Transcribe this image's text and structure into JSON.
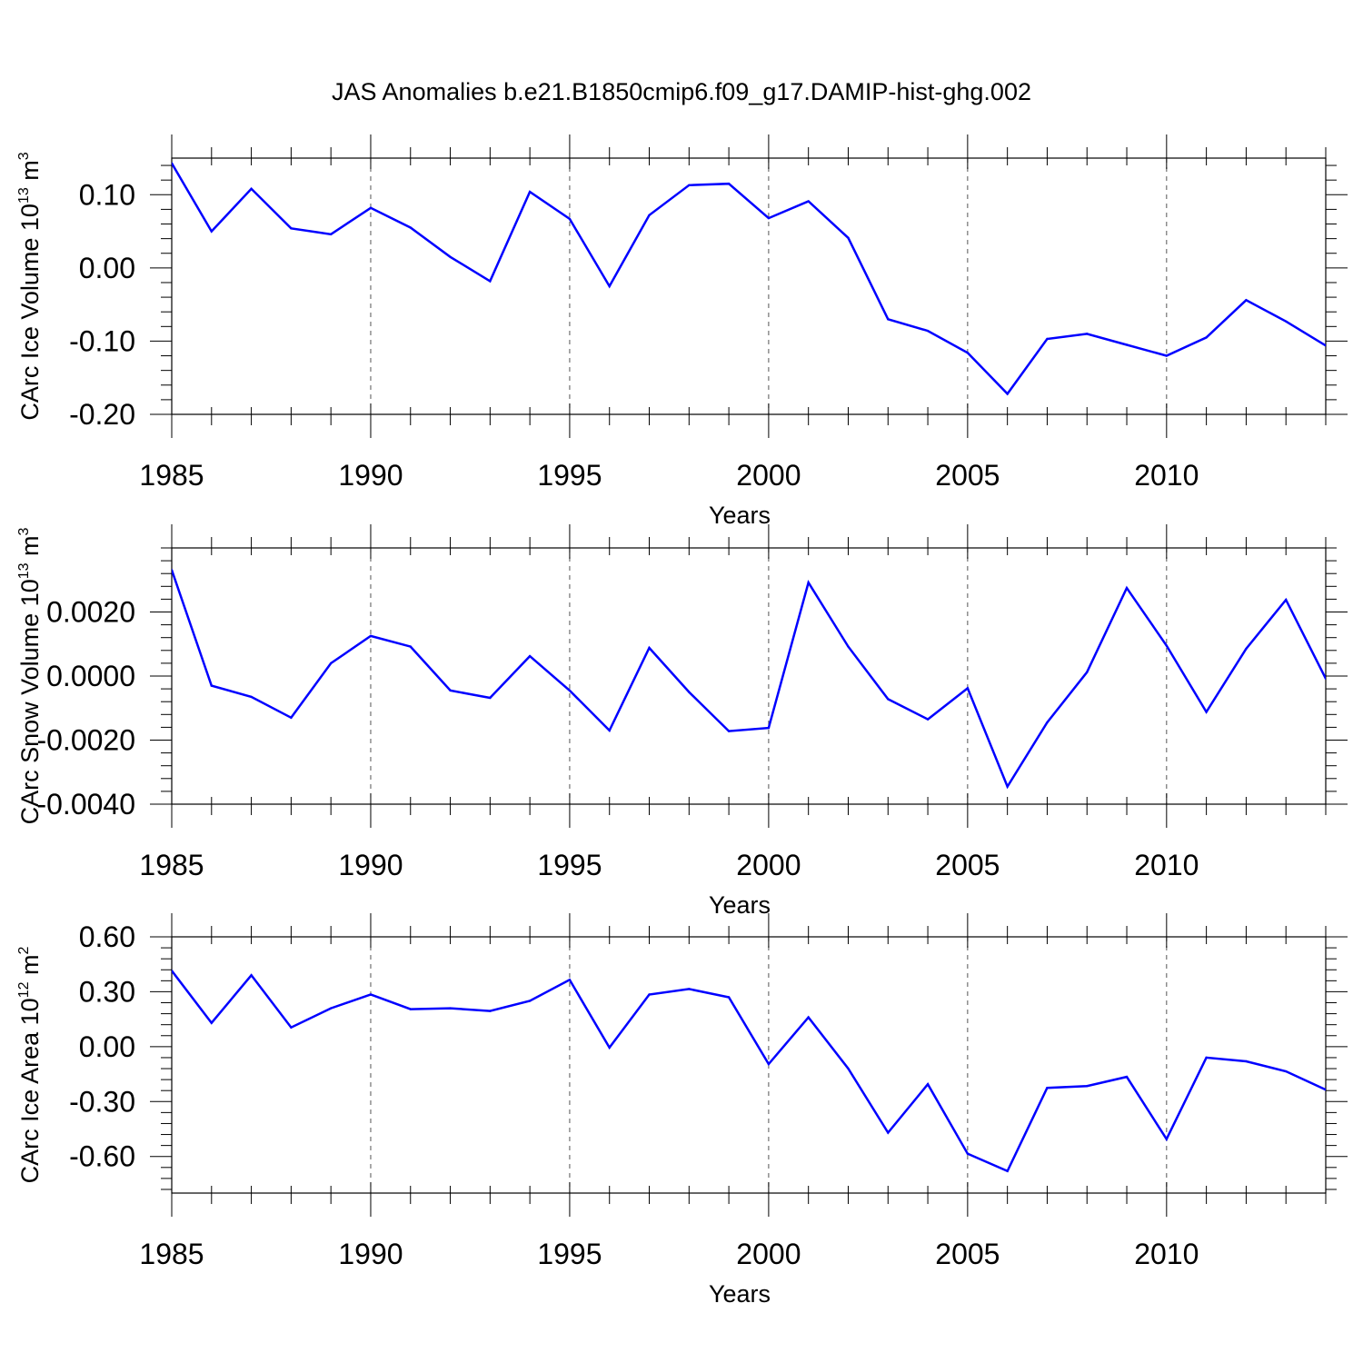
{
  "figure": {
    "title": "JAS Anomalies b.e21.B1850cmip6.f09_g17.DAMIP-hist-ghg.002"
  },
  "colors": {
    "series": "#0000ff",
    "axes": "#000000",
    "grid": "#555555"
  },
  "chart_data": [
    {
      "type": "line",
      "ylabel_main": "CArc Ice Volume 10",
      "ylabel_exp": "13",
      "ylabel_unit": " m",
      "ylabel_unit_exp": "3",
      "xlabel": "Years",
      "xlim": [
        1985,
        2014
      ],
      "ylim": [
        -0.2,
        0.15
      ],
      "x_ticks": [
        1985,
        1990,
        1995,
        2000,
        2005,
        2010
      ],
      "x_tick_labels": [
        "1985",
        "1990",
        "1995",
        "2000",
        "2005",
        "2010"
      ],
      "y_ticks": [
        0.1,
        0.0,
        -0.1,
        -0.2
      ],
      "y_tick_labels": [
        "0.10",
        "0.00",
        "-0.10",
        "-0.20"
      ],
      "x": [
        1985,
        1986,
        1987,
        1988,
        1989,
        1990,
        1991,
        1992,
        1993,
        1994,
        1995,
        1996,
        1997,
        1998,
        1999,
        2000,
        2001,
        2002,
        2003,
        2004,
        2005,
        2006,
        2007,
        2008,
        2009,
        2010,
        2011,
        2012,
        2013,
        2014
      ],
      "values": [
        0.143,
        0.05,
        0.108,
        0.054,
        0.046,
        0.082,
        0.055,
        0.015,
        -0.018,
        0.104,
        0.067,
        -0.025,
        0.072,
        0.113,
        0.115,
        0.068,
        0.091,
        0.041,
        -0.07,
        -0.086,
        -0.116,
        -0.172,
        -0.097,
        -0.09,
        -0.105,
        -0.12,
        -0.095,
        -0.044,
        -0.073,
        -0.106
      ]
    },
    {
      "type": "line",
      "ylabel_main": "CArc Snow Volume 10",
      "ylabel_exp": "13",
      "ylabel_unit": " m",
      "ylabel_unit_exp": "3",
      "xlabel": "Years",
      "xlim": [
        1985,
        2014
      ],
      "ylim": [
        -0.004,
        0.004
      ],
      "x_ticks": [
        1985,
        1990,
        1995,
        2000,
        2005,
        2010
      ],
      "x_tick_labels": [
        "1985",
        "1990",
        "1995",
        "2000",
        "2005",
        "2010"
      ],
      "y_ticks": [
        0.002,
        0.0,
        -0.002,
        -0.004
      ],
      "y_tick_labels": [
        "0.0020",
        "0.0000",
        "-0.0020",
        "-0.0040"
      ],
      "x": [
        1985,
        1986,
        1987,
        1988,
        1989,
        1990,
        1991,
        1992,
        1993,
        1994,
        1995,
        1996,
        1997,
        1998,
        1999,
        2000,
        2001,
        2002,
        2003,
        2004,
        2005,
        2006,
        2007,
        2008,
        2009,
        2010,
        2011,
        2012,
        2013,
        2014
      ],
      "values": [
        0.00331,
        -0.0003,
        -0.00065,
        -0.0013,
        0.0004,
        0.00125,
        0.00092,
        -0.00045,
        -0.00068,
        0.00062,
        -0.00045,
        -0.0017,
        0.00088,
        -0.0005,
        -0.00172,
        -0.00162,
        0.00292,
        0.00092,
        -0.00072,
        -0.00135,
        -0.00038,
        -0.00345,
        -0.00145,
        0.00012,
        0.00275,
        0.00095,
        -0.00112,
        0.00085,
        0.00238,
        -8e-05
      ]
    },
    {
      "type": "line",
      "ylabel_main": "CArc Ice Area 10",
      "ylabel_exp": "12",
      "ylabel_unit": " m",
      "ylabel_unit_exp": "2",
      "xlabel": "Years",
      "xlim": [
        1985,
        2014
      ],
      "ylim": [
        -0.8,
        0.6
      ],
      "x_ticks": [
        1985,
        1990,
        1995,
        2000,
        2005,
        2010
      ],
      "x_tick_labels": [
        "1985",
        "1990",
        "1995",
        "2000",
        "2005",
        "2010"
      ],
      "y_ticks": [
        0.6,
        0.3,
        0.0,
        -0.3,
        -0.6
      ],
      "y_tick_labels": [
        "0.60",
        "0.30",
        "0.00",
        "-0.30",
        "-0.60"
      ],
      "x": [
        1985,
        1986,
        1987,
        1988,
        1989,
        1990,
        1991,
        1992,
        1993,
        1994,
        1995,
        1996,
        1997,
        1998,
        1999,
        2000,
        2001,
        2002,
        2003,
        2004,
        2005,
        2006,
        2007,
        2008,
        2009,
        2010,
        2011,
        2012,
        2013,
        2014
      ],
      "values": [
        0.415,
        0.13,
        0.39,
        0.105,
        0.21,
        0.285,
        0.205,
        0.21,
        0.195,
        0.25,
        0.365,
        -0.005,
        0.285,
        0.315,
        0.27,
        -0.095,
        0.16,
        -0.12,
        -0.47,
        -0.205,
        -0.585,
        -0.68,
        -0.225,
        -0.215,
        -0.165,
        -0.505,
        -0.06,
        -0.08,
        -0.135,
        -0.235
      ]
    }
  ]
}
